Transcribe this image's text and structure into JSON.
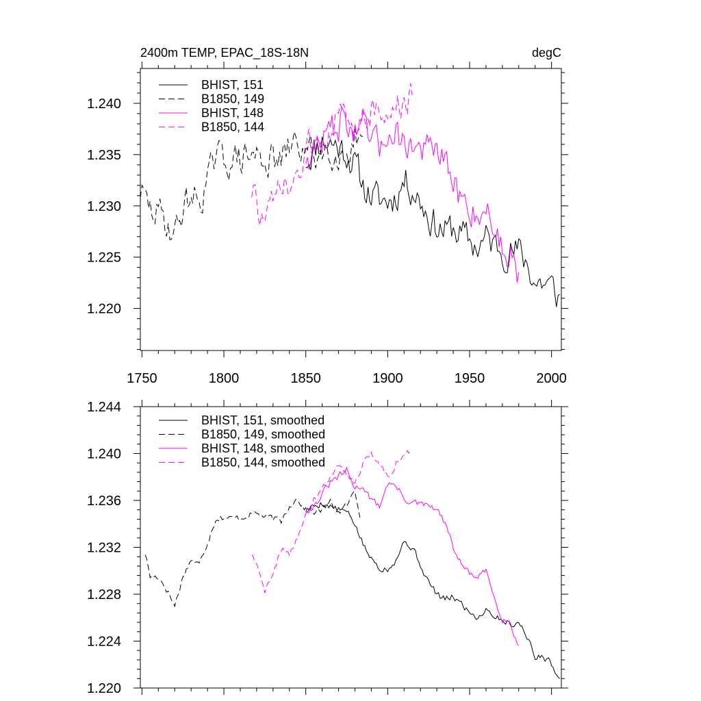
{
  "chart_data": [
    {
      "type": "line",
      "title": "2400m TEMP, EPAC_18S-18N",
      "units": "degC",
      "xlim": [
        1749,
        2006
      ],
      "ylim": [
        1.2159,
        1.2434
      ],
      "xticks": [
        1750,
        1800,
        1850,
        1900,
        1950,
        2000
      ],
      "yticks": [
        1.22,
        1.225,
        1.23,
        1.235,
        1.24
      ],
      "ytick_labels": [
        "1.220",
        "1.225",
        "1.230",
        "1.235",
        "1.240"
      ],
      "series": [
        {
          "name": "BHIST, 151",
          "color": "#000000",
          "dash": "solid",
          "jitter": 0.0026,
          "seed": 11,
          "x": [
            1850,
            1855,
            1860,
            1865,
            1870,
            1875,
            1880,
            1885,
            1890,
            1895,
            1900,
            1905,
            1910,
            1915,
            1920,
            1925,
            1930,
            1935,
            1940,
            1945,
            1950,
            1955,
            1960,
            1965,
            1970,
            1975,
            1980,
            1985,
            1990,
            1995,
            2000,
            2005
          ],
          "y": [
            1.2345,
            1.2355,
            1.2365,
            1.2362,
            1.2358,
            1.2352,
            1.234,
            1.232,
            1.231,
            1.2305,
            1.2305,
            1.231,
            1.2325,
            1.2318,
            1.2305,
            1.229,
            1.228,
            1.2275,
            1.2278,
            1.2272,
            1.2265,
            1.226,
            1.2268,
            1.2262,
            1.2258,
            1.2255,
            1.2255,
            1.2245,
            1.2225,
            1.2225,
            1.222,
            1.221
          ]
        },
        {
          "name": "B1850, 149",
          "color": "#000000",
          "dash": "dashed",
          "jitter": 0.0026,
          "seed": 29,
          "x": [
            1749,
            1755,
            1760,
            1765,
            1770,
            1775,
            1780,
            1785,
            1790,
            1795,
            1800,
            1805,
            1810,
            1815,
            1820,
            1825,
            1830,
            1835,
            1840,
            1845,
            1850,
            1855,
            1860,
            1865,
            1870,
            1875,
            1880,
            1885
          ],
          "y": [
            1.2315,
            1.2295,
            1.2293,
            1.2285,
            1.2272,
            1.2298,
            1.231,
            1.2305,
            1.2325,
            1.2345,
            1.2346,
            1.2344,
            1.2345,
            1.2348,
            1.2349,
            1.2346,
            1.2344,
            1.2342,
            1.2356,
            1.2362,
            1.2352,
            1.235,
            1.2352,
            1.2358,
            1.235,
            1.2355,
            1.2365,
            1.2348
          ]
        },
        {
          "name": "BHIST, 148",
          "color": "#ff00ff",
          "dash": "solid",
          "jitter": 0.0026,
          "seed": 47,
          "x": [
            1850,
            1855,
            1860,
            1865,
            1870,
            1875,
            1880,
            1885,
            1890,
            1895,
            1900,
            1905,
            1910,
            1915,
            1920,
            1925,
            1930,
            1935,
            1940,
            1945,
            1950,
            1955,
            1960,
            1965,
            1970,
            1975,
            1980
          ],
          "y": [
            1.2348,
            1.2355,
            1.2365,
            1.2375,
            1.238,
            1.2385,
            1.237,
            1.2373,
            1.2362,
            1.2355,
            1.2375,
            1.2372,
            1.2363,
            1.2358,
            1.2356,
            1.2355,
            1.2352,
            1.234,
            1.232,
            1.2305,
            1.2298,
            1.2293,
            1.2298,
            1.2278,
            1.226,
            1.2255,
            1.2235
          ]
        },
        {
          "name": "B1850, 144",
          "color": "#ff00ff",
          "dash": "dashed",
          "jitter": 0.0026,
          "seed": 73,
          "x": [
            1817,
            1820,
            1825,
            1830,
            1835,
            1840,
            1845,
            1850,
            1855,
            1860,
            1865,
            1870,
            1875,
            1880,
            1885,
            1890,
            1895,
            1900,
            1905,
            1910,
            1915
          ],
          "y": [
            1.2315,
            1.2305,
            1.228,
            1.23,
            1.232,
            1.2312,
            1.233,
            1.235,
            1.236,
            1.237,
            1.238,
            1.2388,
            1.2382,
            1.2375,
            1.2392,
            1.2395,
            1.2385,
            1.239,
            1.2395,
            1.24,
            1.2402
          ]
        }
      ]
    },
    {
      "type": "line",
      "xlim": [
        1749,
        2006
      ],
      "ylim": [
        1.22,
        1.244
      ],
      "xticks": [
        1750,
        1800,
        1850,
        1900,
        1950,
        2000
      ],
      "yticks": [
        1.22,
        1.224,
        1.228,
        1.232,
        1.236,
        1.24,
        1.244
      ],
      "ytick_labels": [
        "1.220",
        "1.224",
        "1.228",
        "1.232",
        "1.236",
        "1.240",
        "1.244"
      ],
      "series": [
        {
          "name": "BHIST, 151, smoothed",
          "color": "#000000",
          "dash": "solid",
          "jitter": 0.0005,
          "seed": 5,
          "x": [
            1850,
            1855,
            1860,
            1865,
            1870,
            1875,
            1880,
            1885,
            1890,
            1895,
            1900,
            1905,
            1910,
            1915,
            1920,
            1925,
            1930,
            1935,
            1940,
            1945,
            1950,
            1955,
            1960,
            1965,
            1970,
            1975,
            1980,
            1985,
            1990,
            1995,
            2000,
            2005
          ],
          "y": [
            1.2352,
            1.2355,
            1.2358,
            1.2355,
            1.2352,
            1.235,
            1.234,
            1.2322,
            1.231,
            1.2303,
            1.2302,
            1.231,
            1.2325,
            1.232,
            1.2305,
            1.229,
            1.228,
            1.2275,
            1.2278,
            1.2272,
            1.2265,
            1.226,
            1.2268,
            1.2262,
            1.2258,
            1.2255,
            1.2256,
            1.2245,
            1.2225,
            1.2228,
            1.222,
            1.221
          ]
        },
        {
          "name": "B1850, 149, smoothed",
          "color": "#000000",
          "dash": "dashed",
          "jitter": 0.0005,
          "seed": 17,
          "x": [
            1752,
            1755,
            1760,
            1765,
            1770,
            1775,
            1780,
            1785,
            1790,
            1795,
            1800,
            1805,
            1810,
            1815,
            1820,
            1825,
            1830,
            1835,
            1840,
            1845,
            1850,
            1855,
            1860,
            1865,
            1870,
            1875,
            1880,
            1883
          ],
          "y": [
            1.2315,
            1.2295,
            1.2295,
            1.2285,
            1.227,
            1.2295,
            1.231,
            1.2305,
            1.2325,
            1.2345,
            1.2346,
            1.2344,
            1.2345,
            1.2348,
            1.2349,
            1.2346,
            1.2344,
            1.2342,
            1.2356,
            1.2362,
            1.2352,
            1.235,
            1.2352,
            1.2358,
            1.235,
            1.2355,
            1.2368,
            1.2348
          ]
        },
        {
          "name": "BHIST, 148, smoothed",
          "color": "#ff00ff",
          "dash": "solid",
          "jitter": 0.0005,
          "seed": 31,
          "x": [
            1850,
            1855,
            1860,
            1865,
            1870,
            1875,
            1880,
            1885,
            1890,
            1895,
            1900,
            1905,
            1910,
            1915,
            1920,
            1925,
            1930,
            1935,
            1940,
            1945,
            1950,
            1955,
            1960,
            1965,
            1970,
            1975,
            1980
          ],
          "y": [
            1.2352,
            1.2355,
            1.2365,
            1.2375,
            1.238,
            1.2385,
            1.237,
            1.2373,
            1.236,
            1.2355,
            1.2375,
            1.2372,
            1.2362,
            1.2358,
            1.2356,
            1.2355,
            1.2352,
            1.234,
            1.232,
            1.2305,
            1.2298,
            1.2293,
            1.23,
            1.2278,
            1.226,
            1.2255,
            1.2235
          ]
        },
        {
          "name": "B1850, 144, smoothed",
          "color": "#ff00ff",
          "dash": "dashed",
          "jitter": 0.0005,
          "seed": 59,
          "x": [
            1817,
            1820,
            1825,
            1830,
            1835,
            1840,
            1845,
            1850,
            1855,
            1860,
            1865,
            1870,
            1875,
            1880,
            1885,
            1890,
            1895,
            1900,
            1905,
            1910,
            1914
          ],
          "y": [
            1.2315,
            1.2305,
            1.228,
            1.23,
            1.232,
            1.2312,
            1.2328,
            1.2352,
            1.236,
            1.237,
            1.238,
            1.2388,
            1.2382,
            1.2375,
            1.2392,
            1.2402,
            1.239,
            1.238,
            1.2392,
            1.2398,
            1.2402
          ]
        }
      ]
    }
  ]
}
